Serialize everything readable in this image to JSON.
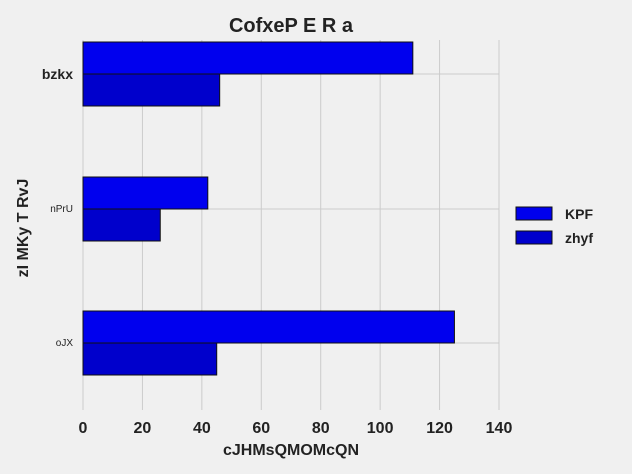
{
  "chart_data": {
    "type": "bar",
    "orientation": "horizontal",
    "title": "CofxeP E R a",
    "xlabel": "cJHMsQMOMcQN",
    "ylabel": "zI  MKy T RvJ",
    "categories": [
      "bzkx",
      "nPrU",
      "oJX"
    ],
    "series": [
      {
        "name": "KPF",
        "values": [
          111,
          42,
          125
        ],
        "color": "#0000ee"
      },
      {
        "name": "zhyf",
        "values": [
          46,
          26,
          45
        ],
        "color": "#0000cc"
      }
    ],
    "xlim": [
      0,
      140
    ],
    "xticks": [
      0,
      20,
      40,
      60,
      80,
      100,
      120,
      140
    ],
    "grid": true,
    "legend": "right"
  }
}
